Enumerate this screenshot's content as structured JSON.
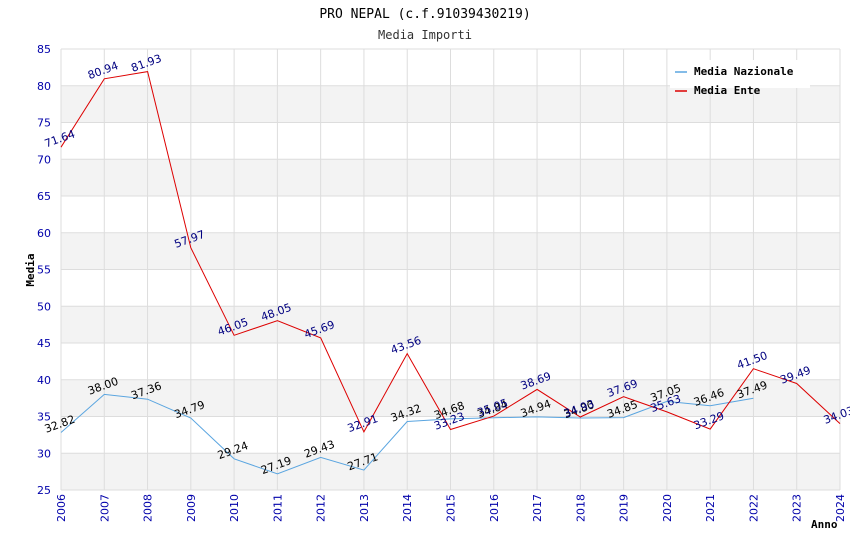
{
  "chart_data": {
    "type": "line",
    "title": "PRO NEPAL (c.f.91039430219)",
    "subtitle": "Media Importi",
    "xlabel": "Anno",
    "ylabel": "Media",
    "ylim": [
      25,
      85
    ],
    "yticks": [
      25,
      30,
      35,
      40,
      45,
      50,
      55,
      60,
      65,
      70,
      75,
      80,
      85
    ],
    "categories": [
      "2006",
      "2007",
      "2008",
      "2009",
      "2010",
      "2011",
      "2012",
      "2013",
      "2014",
      "2015",
      "2016",
      "2017",
      "2018",
      "2019",
      "2020",
      "2021",
      "2022",
      "2023",
      "2024"
    ],
    "legend_position": "top-right",
    "series": [
      {
        "name": "Media Nazionale",
        "color": "#5aa5e0",
        "values": [
          32.82,
          38.0,
          37.36,
          34.79,
          29.24,
          27.19,
          29.43,
          27.71,
          34.32,
          34.68,
          34.84,
          34.94,
          34.8,
          34.85,
          37.05,
          36.46,
          37.49,
          null,
          null
        ],
        "labels": [
          "32.82",
          "38.00",
          "37.36",
          "34.79",
          "29.24",
          "27.19",
          "29.43",
          "27.71",
          "34.32",
          "34.68",
          "34.84",
          "34.94",
          "34.80",
          "34.85",
          "37.05",
          "36.46",
          "37.49",
          "",
          ""
        ]
      },
      {
        "name": "Media Ente",
        "color": "#dd0000",
        "values": [
          71.64,
          80.94,
          81.93,
          57.97,
          46.05,
          48.05,
          45.69,
          32.91,
          43.56,
          33.23,
          35.05,
          38.69,
          34.93,
          37.69,
          35.63,
          33.29,
          41.5,
          39.49,
          34.03
        ],
        "labels": [
          "71.64",
          "80.94",
          "81.93",
          "57.97",
          "46.05",
          "48.05",
          "45.69",
          "32.91",
          "43.56",
          "33.23",
          "35.05",
          "38.69",
          "34.93",
          "37.69",
          "35.63",
          "33.29",
          "41.50",
          "39.49",
          "34.03"
        ]
      }
    ]
  }
}
